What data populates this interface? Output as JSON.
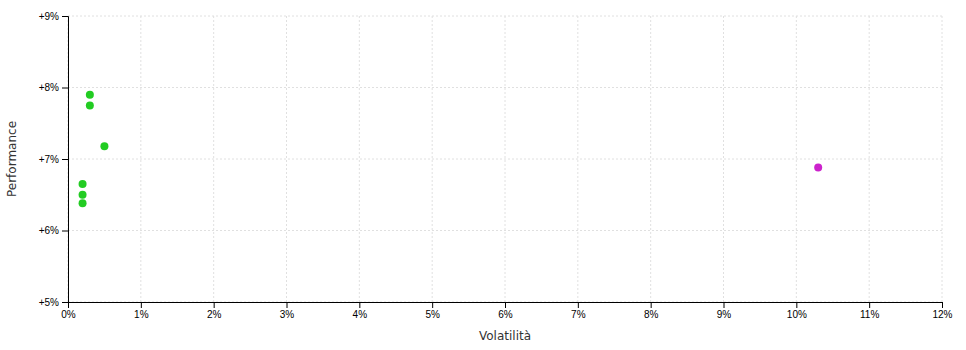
{
  "chart_data": {
    "type": "scatter",
    "xlabel": "Volatilità",
    "ylabel": "Performance",
    "xlim": [
      0,
      0.12
    ],
    "ylim": [
      0.05,
      0.09
    ],
    "xticks": [
      {
        "value": 0.0,
        "label": "0%"
      },
      {
        "value": 0.01,
        "label": "1%"
      },
      {
        "value": 0.02,
        "label": "2%"
      },
      {
        "value": 0.03,
        "label": "3%"
      },
      {
        "value": 0.04,
        "label": "4%"
      },
      {
        "value": 0.05,
        "label": "5%"
      },
      {
        "value": 0.06,
        "label": "6%"
      },
      {
        "value": 0.07,
        "label": "7%"
      },
      {
        "value": 0.08,
        "label": "8%"
      },
      {
        "value": 0.09,
        "label": "9%"
      },
      {
        "value": 0.1,
        "label": "10%"
      },
      {
        "value": 0.11,
        "label": "11%"
      },
      {
        "value": 0.12,
        "label": "12%"
      }
    ],
    "yticks": [
      {
        "value": 0.05,
        "label": "+5%"
      },
      {
        "value": 0.06,
        "label": "+6%"
      },
      {
        "value": 0.07,
        "label": "+7%"
      },
      {
        "value": 0.08,
        "label": "+8%"
      },
      {
        "value": 0.09,
        "label": "+9%"
      }
    ],
    "grid": true,
    "series": [
      {
        "color": "#22cc22",
        "x": [
          0.003,
          0.003,
          0.005,
          0.002,
          0.002,
          0.002
        ],
        "values": [
          0.079,
          0.0775,
          0.0718,
          0.0665,
          0.065,
          0.0638
        ]
      },
      {
        "color": "#cc22cc",
        "x": [
          0.103
        ],
        "values": [
          0.0688
        ]
      }
    ]
  }
}
